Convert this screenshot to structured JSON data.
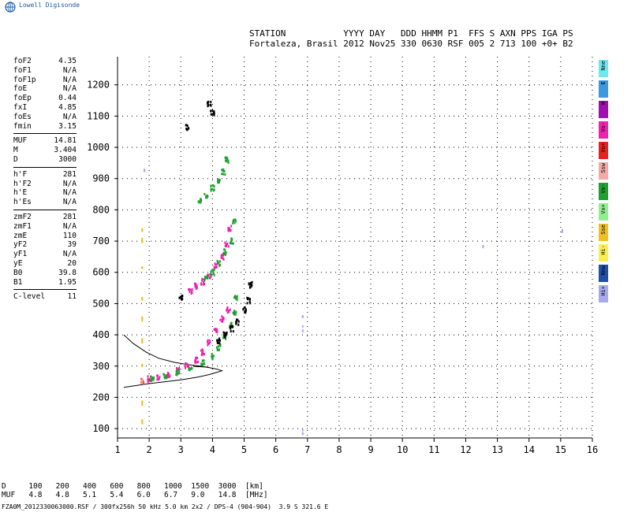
{
  "brand": "Lowell Digisonde",
  "header": {
    "line1": "STATION           YYYY DAY   DDD HHMM P1  FFS S AXN PPS IGA PS",
    "line2": "Fortaleza, Brasil 2012 Nov25 330 0630 RSF 005 2 713 100 +0+ B2"
  },
  "params": {
    "group1": [
      {
        "label": "foF2",
        "value": "4.35"
      },
      {
        "label": "foF1",
        "value": "N/A"
      },
      {
        "label": "foF1p",
        "value": "N/A"
      },
      {
        "label": "foE",
        "value": "N/A"
      },
      {
        "label": "foEp",
        "value": "0.44"
      },
      {
        "label": "fxI",
        "value": "4.85"
      },
      {
        "label": "foEs",
        "value": "N/A"
      },
      {
        "label": "fmin",
        "value": "3.15"
      }
    ],
    "group2": [
      {
        "label": "MUF",
        "value": "14.81"
      },
      {
        "label": "M",
        "value": "3.404"
      },
      {
        "label": "D",
        "value": "3000"
      }
    ],
    "group3": [
      {
        "label": "h'F",
        "value": "281"
      },
      {
        "label": "h'F2",
        "value": "N/A"
      },
      {
        "label": "h'E",
        "value": "N/A"
      },
      {
        "label": "h'Es",
        "value": "N/A"
      }
    ],
    "group4": [
      {
        "label": "zmF2",
        "value": "281"
      },
      {
        "label": "zmF1",
        "value": "N/A"
      },
      {
        "label": "zmE",
        "value": "110"
      },
      {
        "label": "yF2",
        "value": "39"
      },
      {
        "label": "yF1",
        "value": "N/A"
      },
      {
        "label": "yE",
        "value": "20"
      },
      {
        "label": "B0",
        "value": "39.8"
      },
      {
        "label": "B1",
        "value": "1.95"
      }
    ],
    "group5": [
      {
        "label": "C-level",
        "value": "11"
      }
    ]
  },
  "legend": [
    {
      "label": "Nne",
      "color": "#6ee8f0"
    },
    {
      "label": "E",
      "color": "#3a9ae0"
    },
    {
      "label": "W",
      "color": "#a010b0"
    },
    {
      "label": "Vo-",
      "color": "#f020b0"
    },
    {
      "label": "Vo+",
      "color": "#e82020"
    },
    {
      "label": "Ssw",
      "color": "#f4a8a8"
    },
    {
      "label": "Vx-",
      "color": "#20a030"
    },
    {
      "label": "Vx+",
      "color": "#90f090"
    },
    {
      "label": "Sse",
      "color": "#f0c020"
    },
    {
      "label": "Hi-",
      "color": "#f8f050"
    },
    {
      "label": "Nnw",
      "color": "#2050a8"
    },
    {
      "label": "Hi+",
      "color": "#a8a8f0"
    }
  ],
  "dmuf": {
    "d_label": "D",
    "d_values": [
      "100",
      "200",
      "400",
      "600",
      "800",
      "1000",
      "1500",
      "3000",
      "[km]"
    ],
    "muf_label": "MUF",
    "muf_values": [
      "4.8",
      "4.8",
      "5.1",
      "5.4",
      "6.0",
      "6.7",
      "9.0",
      "14.8",
      "[MHz]"
    ]
  },
  "footer": "FZA0M_2012330063000.RSF / 300fx256h 50 kHz 5.0 km 2x2 / DPS-4 (904-904)  3.9 S 321.6 E",
  "chart_data": {
    "type": "scatter",
    "x_ticks": [
      "1",
      "2",
      "3",
      "4",
      "5",
      "6",
      "7",
      "8",
      "9",
      "10",
      "11",
      "12",
      "13",
      "14",
      "15",
      "16"
    ],
    "y_ticks": [
      "100",
      "200",
      "300",
      "400",
      "500",
      "600",
      "700",
      "800",
      "900",
      "1000",
      "1100",
      "1200"
    ],
    "xlim": [
      1,
      16
    ],
    "ylim": [
      70,
      1290
    ],
    "grid": true,
    "series": [
      {
        "name": "O-trace",
        "color": "#f020b0",
        "points": [
          [
            1.8,
            252
          ],
          [
            2.0,
            258
          ],
          [
            2.3,
            262
          ],
          [
            2.6,
            272
          ],
          [
            2.9,
            285
          ],
          [
            3.2,
            300
          ],
          [
            3.5,
            320
          ],
          [
            3.7,
            345
          ],
          [
            3.9,
            375
          ],
          [
            4.1,
            410
          ],
          [
            4.3,
            450
          ],
          [
            4.5,
            480
          ]
        ]
      },
      {
        "name": "X-trace",
        "color": "#20a030",
        "points": [
          [
            2.1,
            262
          ],
          [
            2.5,
            270
          ],
          [
            2.9,
            278
          ],
          [
            3.3,
            290
          ],
          [
            3.7,
            310
          ],
          [
            4.0,
            330
          ],
          [
            4.2,
            360
          ],
          [
            4.4,
            395
          ],
          [
            4.6,
            430
          ],
          [
            4.7,
            470
          ],
          [
            4.75,
            520
          ]
        ]
      },
      {
        "name": "2F-O",
        "color": "#f020b0",
        "points": [
          [
            3.3,
            540
          ],
          [
            3.5,
            555
          ],
          [
            3.7,
            570
          ],
          [
            3.9,
            590
          ],
          [
            4.1,
            620
          ],
          [
            4.3,
            650
          ],
          [
            4.45,
            690
          ],
          [
            4.55,
            740
          ]
        ]
      },
      {
        "name": "2F-X",
        "color": "#20a030",
        "points": [
          [
            3.8,
            580
          ],
          [
            4.0,
            600
          ],
          [
            4.2,
            630
          ],
          [
            4.4,
            665
          ],
          [
            4.6,
            700
          ],
          [
            4.7,
            760
          ]
        ]
      },
      {
        "name": "3F",
        "color": "#20a030",
        "points": [
          [
            3.6,
            830
          ],
          [
            3.8,
            845
          ],
          [
            4.0,
            870
          ],
          [
            4.2,
            895
          ],
          [
            4.35,
            920
          ],
          [
            4.45,
            960
          ]
        ]
      },
      {
        "name": "Black",
        "color": "#000000",
        "points": [
          [
            4.2,
            380
          ],
          [
            4.4,
            400
          ],
          [
            4.6,
            420
          ],
          [
            4.8,
            440
          ],
          [
            5.0,
            480
          ],
          [
            5.15,
            510
          ],
          [
            5.2,
            560
          ],
          [
            3.9,
            1140
          ],
          [
            4.0,
            1110
          ],
          [
            3.0,
            520
          ],
          [
            3.2,
            1065
          ]
        ]
      },
      {
        "name": "Vertical",
        "color": "#f0c020",
        "points": [
          [
            1.78,
            740
          ],
          [
            1.78,
            700
          ],
          [
            1.78,
            620
          ],
          [
            1.78,
            520
          ],
          [
            1.78,
            450
          ],
          [
            1.78,
            380
          ],
          [
            1.78,
            300
          ],
          [
            1.78,
            250
          ],
          [
            1.78,
            180
          ],
          [
            1.78,
            120
          ]
        ]
      },
      {
        "name": "Isolated",
        "color": "#a8a8f0",
        "points": [
          [
            12.55,
            680
          ],
          [
            15.05,
            730
          ],
          [
            6.85,
            465
          ],
          [
            6.85,
            420
          ],
          [
            6.85,
            90
          ],
          [
            1.85,
            925
          ]
        ]
      }
    ],
    "model_curves": [
      {
        "name": "profile-upper",
        "points": [
          [
            1.2,
            400
          ],
          [
            1.5,
            372
          ],
          [
            1.9,
            345
          ],
          [
            2.3,
            325
          ],
          [
            2.8,
            312
          ],
          [
            3.2,
            305
          ],
          [
            3.6,
            300
          ],
          [
            3.9,
            295
          ]
        ]
      },
      {
        "name": "profile-lower",
        "points": [
          [
            1.2,
            232
          ],
          [
            1.6,
            238
          ],
          [
            2.0,
            244
          ],
          [
            2.5,
            250
          ],
          [
            3.0,
            256
          ],
          [
            3.5,
            264
          ],
          [
            3.9,
            273
          ],
          [
            4.3,
            285
          ],
          [
            4.15,
            290
          ],
          [
            3.8,
            297
          ],
          [
            3.4,
            299
          ]
        ]
      }
    ]
  }
}
